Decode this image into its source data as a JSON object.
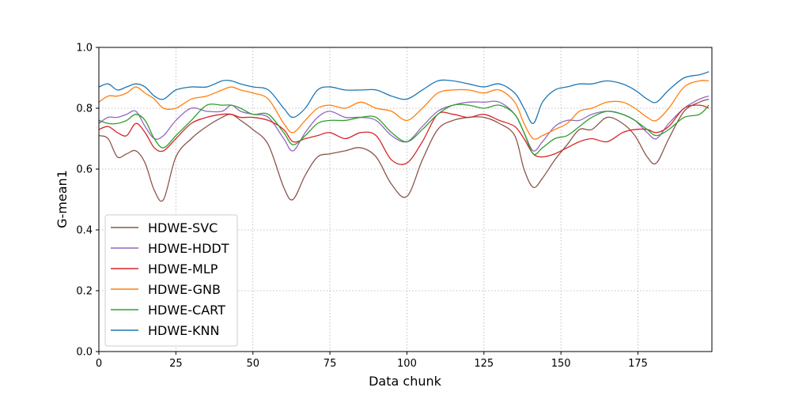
{
  "chart_data": {
    "type": "line",
    "xlabel": "Data chunk",
    "ylabel": "G-mean1",
    "xlim": [
      0,
      199
    ],
    "ylim": [
      0.0,
      1.0
    ],
    "x_ticks": [
      0,
      25,
      50,
      75,
      100,
      125,
      150,
      175
    ],
    "y_ticks": [
      0.0,
      0.2,
      0.4,
      0.6,
      0.8,
      1.0
    ],
    "y_tick_labels": [
      "0.0",
      "0.2",
      "0.4",
      "0.6",
      "0.8",
      "1.0"
    ],
    "grid": true,
    "legend_position": "lower-left",
    "x": [
      0,
      3,
      6,
      9,
      12,
      15,
      18,
      21,
      25,
      30,
      35,
      40,
      43,
      46,
      50,
      55,
      60,
      63,
      67,
      71,
      75,
      80,
      85,
      90,
      95,
      100,
      105,
      110,
      115,
      120,
      125,
      130,
      135,
      138,
      141,
      144,
      148,
      152,
      156,
      160,
      165,
      170,
      174,
      178,
      181,
      185,
      190,
      195,
      198
    ],
    "series": [
      {
        "name": "HDWE-SVC",
        "color": "#8c564b",
        "values": [
          0.71,
          0.7,
          0.64,
          0.65,
          0.66,
          0.62,
          0.53,
          0.5,
          0.64,
          0.7,
          0.74,
          0.77,
          0.78,
          0.76,
          0.73,
          0.68,
          0.54,
          0.5,
          0.58,
          0.64,
          0.65,
          0.66,
          0.67,
          0.64,
          0.55,
          0.51,
          0.63,
          0.73,
          0.76,
          0.77,
          0.77,
          0.75,
          0.71,
          0.6,
          0.54,
          0.57,
          0.63,
          0.68,
          0.73,
          0.73,
          0.77,
          0.75,
          0.71,
          0.64,
          0.62,
          0.7,
          0.79,
          0.82,
          0.83
        ]
      },
      {
        "name": "HDWE-HDDT",
        "color": "#9467bd",
        "values": [
          0.75,
          0.77,
          0.77,
          0.78,
          0.79,
          0.74,
          0.7,
          0.71,
          0.76,
          0.8,
          0.79,
          0.79,
          0.81,
          0.79,
          0.78,
          0.77,
          0.7,
          0.66,
          0.72,
          0.77,
          0.79,
          0.77,
          0.77,
          0.76,
          0.71,
          0.69,
          0.74,
          0.79,
          0.81,
          0.82,
          0.82,
          0.82,
          0.78,
          0.72,
          0.66,
          0.69,
          0.74,
          0.76,
          0.76,
          0.78,
          0.79,
          0.78,
          0.76,
          0.72,
          0.7,
          0.75,
          0.8,
          0.83,
          0.84
        ]
      },
      {
        "name": "HDWE-MLP",
        "color": "#d62728",
        "values": [
          0.73,
          0.74,
          0.72,
          0.71,
          0.75,
          0.72,
          0.67,
          0.66,
          0.7,
          0.75,
          0.77,
          0.78,
          0.78,
          0.77,
          0.77,
          0.76,
          0.73,
          0.69,
          0.7,
          0.71,
          0.72,
          0.7,
          0.72,
          0.71,
          0.63,
          0.62,
          0.69,
          0.78,
          0.78,
          0.77,
          0.78,
          0.76,
          0.74,
          0.7,
          0.65,
          0.64,
          0.65,
          0.67,
          0.69,
          0.7,
          0.69,
          0.72,
          0.73,
          0.73,
          0.72,
          0.74,
          0.8,
          0.81,
          0.8
        ]
      },
      {
        "name": "HDWE-GNB",
        "color": "#ff7f0e",
        "values": [
          0.82,
          0.84,
          0.84,
          0.85,
          0.87,
          0.85,
          0.83,
          0.8,
          0.8,
          0.83,
          0.84,
          0.86,
          0.87,
          0.86,
          0.85,
          0.83,
          0.75,
          0.72,
          0.76,
          0.8,
          0.81,
          0.8,
          0.82,
          0.8,
          0.79,
          0.76,
          0.8,
          0.85,
          0.86,
          0.86,
          0.85,
          0.86,
          0.82,
          0.75,
          0.7,
          0.71,
          0.73,
          0.75,
          0.79,
          0.8,
          0.82,
          0.82,
          0.8,
          0.77,
          0.76,
          0.8,
          0.87,
          0.89,
          0.89
        ]
      },
      {
        "name": "HDWE-CART",
        "color": "#2ca02c",
        "values": [
          0.76,
          0.75,
          0.75,
          0.76,
          0.78,
          0.76,
          0.7,
          0.67,
          0.71,
          0.76,
          0.81,
          0.81,
          0.81,
          0.8,
          0.78,
          0.78,
          0.72,
          0.68,
          0.71,
          0.75,
          0.76,
          0.76,
          0.77,
          0.77,
          0.72,
          0.69,
          0.73,
          0.78,
          0.81,
          0.81,
          0.8,
          0.81,
          0.78,
          0.72,
          0.65,
          0.67,
          0.7,
          0.71,
          0.74,
          0.77,
          0.79,
          0.78,
          0.76,
          0.73,
          0.71,
          0.73,
          0.77,
          0.78,
          0.81
        ]
      },
      {
        "name": "HDWE-KNN",
        "color": "#1f77b4",
        "values": [
          0.87,
          0.88,
          0.86,
          0.87,
          0.88,
          0.87,
          0.84,
          0.83,
          0.86,
          0.87,
          0.87,
          0.89,
          0.89,
          0.88,
          0.87,
          0.86,
          0.8,
          0.77,
          0.8,
          0.86,
          0.87,
          0.86,
          0.86,
          0.86,
          0.84,
          0.83,
          0.86,
          0.89,
          0.89,
          0.88,
          0.87,
          0.88,
          0.85,
          0.8,
          0.75,
          0.82,
          0.86,
          0.87,
          0.88,
          0.88,
          0.89,
          0.88,
          0.86,
          0.83,
          0.82,
          0.86,
          0.9,
          0.91,
          0.92
        ]
      }
    ]
  }
}
